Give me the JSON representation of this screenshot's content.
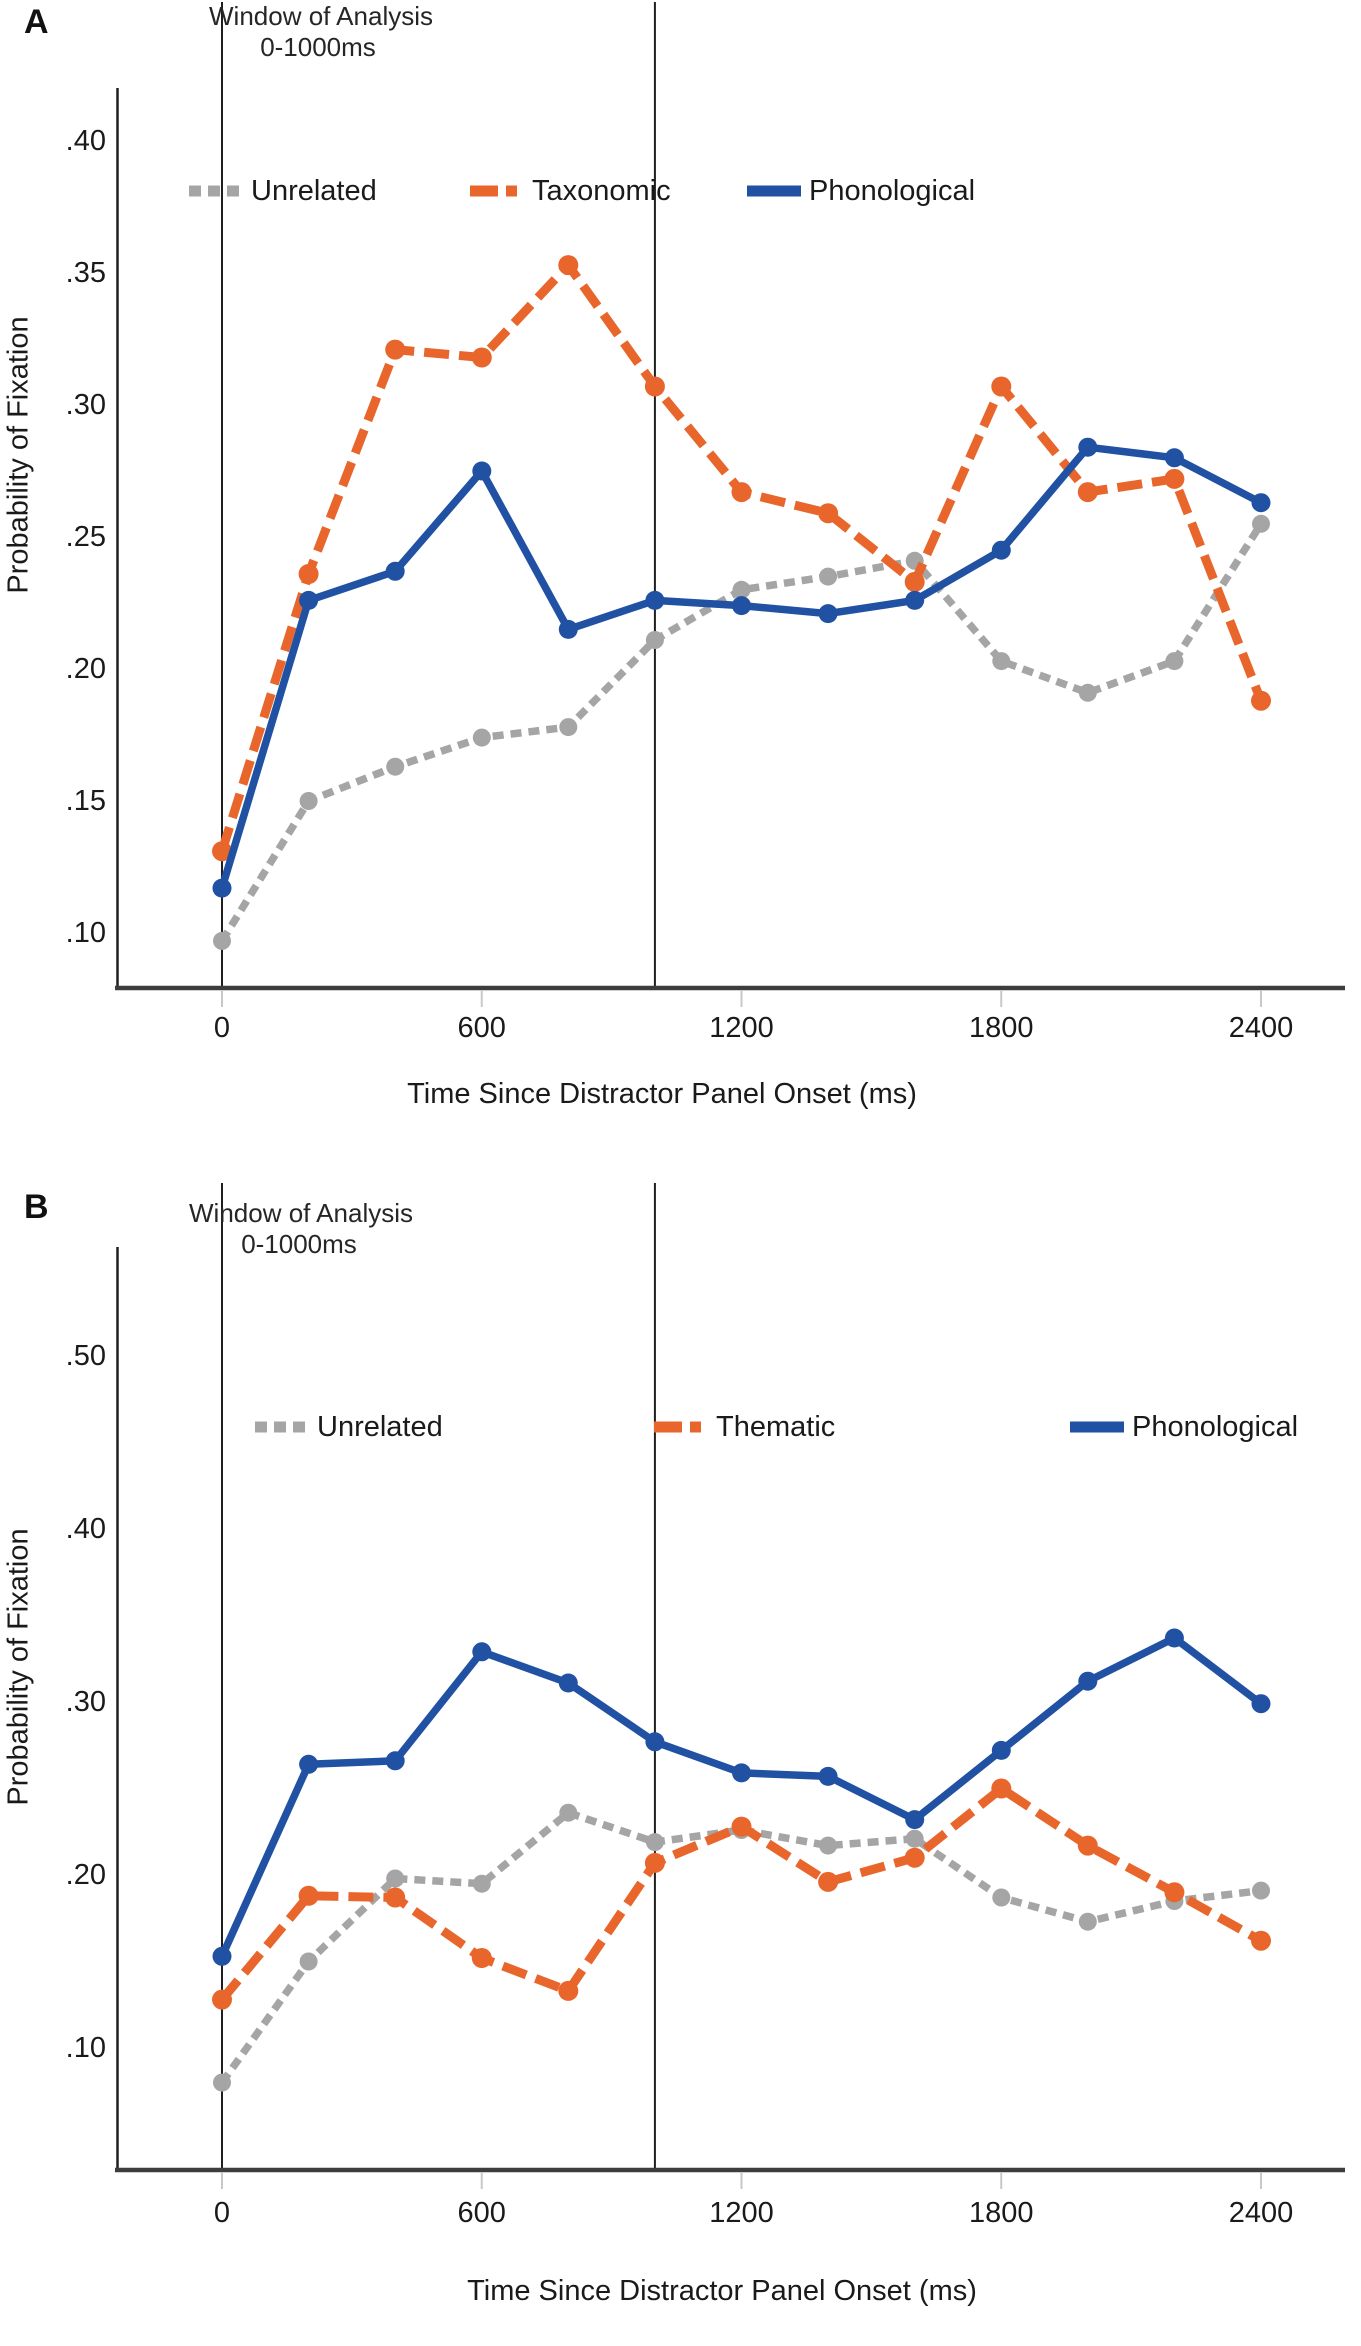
{
  "colors": {
    "unrelated": "#A5A5A5",
    "orange": "#E8662C",
    "phonological": "#2151A3",
    "axis_line": "#3D3D3D",
    "spine_line": "#1F1F1F",
    "tick_mark": "#C8C8C8",
    "text": "#1A1A1A"
  },
  "figure": {
    "panels": [
      {
        "letter": "A",
        "window_label_line1": "Window of Analysis",
        "window_label_line2": "0-1000ms",
        "ylabel": "Probability of Fixation",
        "xlabel": "Time Since Distractor Panel Onset (ms)"
      },
      {
        "letter": "B",
        "window_label_line1": "Window of Analysis",
        "window_label_line2": "0-1000ms",
        "ylabel": "Probability of Fixation",
        "xlabel": "Time Since Distractor Panel Onset (ms)"
      }
    ]
  },
  "chart_data": [
    {
      "type": "line",
      "panel": "A",
      "title": "Window of Analysis 0-1000ms",
      "xlabel": "Time Since Distractor Panel Onset (ms)",
      "ylabel": "Probability of Fixation",
      "x": [
        0,
        200,
        400,
        600,
        800,
        1000,
        1200,
        1400,
        1600,
        1800,
        2000,
        2200,
        2400
      ],
      "x_tick_values": [
        0,
        600,
        1200,
        1800,
        2400
      ],
      "x_tick_labels": [
        "0",
        "600",
        "1200",
        "1800",
        "2400"
      ],
      "y_tick_values": [
        0.4,
        0.35,
        0.3,
        0.25,
        0.2,
        0.15,
        0.1
      ],
      "y_tick_labels": [
        ".40",
        ".35",
        ".30",
        ".25",
        ".20",
        ".15",
        ".10"
      ],
      "ylim": [
        0.079,
        0.42
      ],
      "xlim": [
        -242,
        2594
      ],
      "grid": false,
      "legend_position": "top-inside",
      "annotations": {
        "window_lines_ms": [
          0,
          1000
        ]
      },
      "series": [
        {
          "name": "Unrelated",
          "style": "dotted",
          "color": "#A5A5A5",
          "values": [
            0.097,
            0.15,
            0.163,
            0.174,
            0.178,
            0.211,
            0.23,
            0.235,
            0.241,
            0.203,
            0.191,
            0.203,
            0.255
          ]
        },
        {
          "name": "Taxonomic",
          "style": "dashed",
          "color": "#E8662C",
          "values": [
            0.131,
            0.236,
            0.321,
            0.318,
            0.353,
            0.307,
            0.267,
            0.259,
            0.233,
            0.307,
            0.267,
            0.272,
            0.188
          ]
        },
        {
          "name": "Phonological",
          "style": "solid",
          "color": "#2151A3",
          "values": [
            0.117,
            0.226,
            0.237,
            0.275,
            0.215,
            0.226,
            0.224,
            0.221,
            0.226,
            0.245,
            0.284,
            0.28,
            0.263
          ]
        }
      ]
    },
    {
      "type": "line",
      "panel": "B",
      "title": "Window of Analysis 0-1000ms",
      "xlabel": "Time Since Distractor Panel Onset (ms)",
      "ylabel": "Probability of Fixation",
      "x": [
        0,
        200,
        400,
        600,
        800,
        1000,
        1200,
        1400,
        1600,
        1800,
        2000,
        2200,
        2400
      ],
      "x_tick_values": [
        0,
        600,
        1200,
        1800,
        2400
      ],
      "x_tick_labels": [
        "0",
        "600",
        "1200",
        "1800",
        "2400"
      ],
      "y_tick_values": [
        0.5,
        0.4,
        0.3,
        0.2,
        0.1
      ],
      "y_tick_labels": [
        ".50",
        ".40",
        ".30",
        ".20",
        ".10"
      ],
      "ylim": [
        0.03,
        0.563
      ],
      "xlim": [
        -242,
        2594
      ],
      "grid": false,
      "legend_position": "top-inside",
      "annotations": {
        "window_lines_ms": [
          0,
          1000
        ]
      },
      "series": [
        {
          "name": "Unrelated",
          "style": "dotted",
          "color": "#A5A5A5",
          "values": [
            0.08,
            0.15,
            0.198,
            0.195,
            0.236,
            0.219,
            0.226,
            0.217,
            0.221,
            0.187,
            0.173,
            0.185,
            0.191
          ]
        },
        {
          "name": "Thematic",
          "style": "dashed",
          "color": "#E8662C",
          "values": [
            0.128,
            0.188,
            0.187,
            0.152,
            0.133,
            0.207,
            0.228,
            0.196,
            0.21,
            0.25,
            0.217,
            0.19,
            0.162
          ]
        },
        {
          "name": "Phonological",
          "style": "solid",
          "color": "#2151A3",
          "values": [
            0.153,
            0.264,
            0.266,
            0.329,
            0.311,
            0.277,
            0.259,
            0.257,
            0.232,
            0.272,
            0.312,
            0.337,
            0.299
          ]
        }
      ]
    }
  ]
}
